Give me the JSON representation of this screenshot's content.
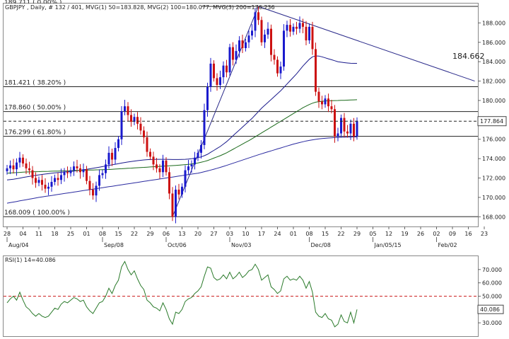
{
  "header": {
    "text": "GBPJPY , Daily, # 132 / 401, MVG(1) 50=183.828, MVG(2) 100=180.077, MVG(3) 200=176.236"
  },
  "price_tag": "177.864",
  "trendline_value": "184.662",
  "colors": {
    "bull": "#1a1acd",
    "bear": "#cc1111",
    "ma50": "#1a1a8c",
    "ma100": "#1b6a1b",
    "ma200": "#2a2aa0",
    "fib": "#222222",
    "rsi_line": "#2a7a2a",
    "rsi_ref": "#cc2222",
    "trend": "#2a2a8a"
  },
  "chart_data": [
    {
      "type": "candlestick",
      "title": "GBPJPY , Daily",
      "ylim": [
        167.0,
        190.0
      ],
      "y_ticks": [
        168,
        170,
        172,
        174,
        176,
        178,
        180,
        182,
        184,
        186,
        188
      ],
      "y_tick_labels": [
        "168.000",
        "170.000",
        "172.000",
        "174.000",
        "176.000",
        "178.000",
        "180.000",
        "182.000",
        "184.000",
        "186.000",
        "188.000"
      ],
      "x_tick_labels": [
        "28",
        "04",
        "11",
        "18",
        "25",
        "01",
        "08",
        "15",
        "22",
        "29",
        "06",
        "13",
        "20",
        "27",
        "03",
        "10",
        "17",
        "24",
        "01",
        "08",
        "15",
        "22",
        "29",
        "05",
        "12",
        "19",
        "26",
        "02",
        "09",
        "16",
        "23"
      ],
      "month_labels": [
        {
          "label": "Aug/04",
          "at_tick": 0
        },
        {
          "label": "Sep/08",
          "at_tick": 6
        },
        {
          "label": "Oct/06",
          "at_tick": 10
        },
        {
          "label": "Nov/03",
          "at_tick": 14
        },
        {
          "label": "Dec/08",
          "at_tick": 19
        },
        {
          "label": "Jan/05/15",
          "at_tick": 23
        },
        {
          "label": "Feb/02",
          "at_tick": 27
        }
      ],
      "candles_per_week": 5,
      "first_tick_candle_offset": 0,
      "current_price": 177.864,
      "fib_levels": [
        {
          "label": "168.009  ( 100.00% )",
          "value": 168.009
        },
        {
          "label": "176.299  ( 61.80% )",
          "value": 176.299
        },
        {
          "label": "178.860  ( 50.00% )",
          "value": 178.86
        },
        {
          "label": "181.421  ( 38.20% )",
          "value": 181.421
        },
        {
          "label": "189.711  ( 0.00% )",
          "value": 189.711
        }
      ],
      "close": [
        173.0,
        173.3,
        172.9,
        173.6,
        174.1,
        173.5,
        173.0,
        172.8,
        172.0,
        171.5,
        171.8,
        171.3,
        170.9,
        171.1,
        171.6,
        172.0,
        171.8,
        172.3,
        172.6,
        172.5,
        172.8,
        173.2,
        173.0,
        172.6,
        172.9,
        171.7,
        170.8,
        170.2,
        171.2,
        172.3,
        172.5,
        173.4,
        174.6,
        173.9,
        175.1,
        176.0,
        178.9,
        179.4,
        178.5,
        177.8,
        178.3,
        177.6,
        176.9,
        176.2,
        174.7,
        174.2,
        173.4,
        173.0,
        172.6,
        173.8,
        172.6,
        170.4,
        168.0,
        170.8,
        170.3,
        171.1,
        172.8,
        173.2,
        173.4,
        174.1,
        174.6,
        175.4,
        179.0,
        181.4,
        183.8,
        182.3,
        181.6,
        182.4,
        183.6,
        182.9,
        185.5,
        184.2,
        185.1,
        186.2,
        185.4,
        186.0,
        186.7,
        187.2,
        189.1,
        188.3,
        186.0,
        186.8,
        187.4,
        184.7,
        184.2,
        182.8,
        183.5,
        187.2,
        187.8,
        187.1,
        187.6,
        187.4,
        188.0,
        187.6,
        186.2,
        187.6,
        185.3,
        180.9,
        179.9,
        179.6,
        180.2,
        179.4,
        179.1,
        176.3,
        176.6,
        178.2,
        176.8,
        176.6,
        177.6,
        176.3,
        177.9
      ],
      "ma50": [
        171.8,
        171.84,
        171.88,
        171.93,
        171.99,
        172.05,
        172.11,
        172.17,
        172.22,
        172.27,
        172.32,
        172.37,
        172.41,
        172.45,
        172.49,
        172.53,
        172.56,
        172.59,
        172.62,
        172.65,
        172.68,
        172.72,
        172.76,
        172.8,
        172.85,
        172.9,
        172.95,
        173.0,
        173.06,
        173.12,
        173.18,
        173.24,
        173.3,
        173.36,
        173.42,
        173.48,
        173.54,
        173.6,
        173.65,
        173.7,
        173.75,
        173.79,
        173.83,
        173.86,
        173.89,
        173.91,
        173.92,
        173.93,
        173.93,
        173.93,
        173.93,
        173.92,
        173.91,
        173.91,
        173.91,
        173.92,
        173.93,
        173.95,
        173.99,
        174.04,
        174.1,
        174.18,
        174.3,
        174.45,
        174.65,
        174.85,
        175.05,
        175.25,
        175.5,
        175.75,
        176.05,
        176.35,
        176.65,
        176.95,
        177.25,
        177.55,
        177.85,
        178.15,
        178.5,
        178.85,
        179.2,
        179.5,
        179.8,
        180.1,
        180.4,
        180.7,
        181.0,
        181.35,
        181.7,
        182.05,
        182.4,
        182.75,
        183.15,
        183.55,
        183.9,
        184.25,
        184.5,
        184.6,
        184.58,
        184.5,
        184.4,
        184.3,
        184.2,
        184.1,
        184.0,
        183.95,
        183.9,
        183.87,
        183.84,
        183.83,
        183.83
      ],
      "ma100": [
        172.5,
        172.52,
        172.54,
        172.56,
        172.58,
        172.6,
        172.62,
        172.63,
        172.64,
        172.65,
        172.66,
        172.67,
        172.68,
        172.69,
        172.7,
        172.71,
        172.72,
        172.73,
        172.74,
        172.75,
        172.76,
        172.77,
        172.78,
        172.79,
        172.8,
        172.81,
        172.82,
        172.83,
        172.84,
        172.85,
        172.86,
        172.87,
        172.88,
        172.9,
        172.92,
        172.94,
        172.96,
        172.98,
        173.0,
        173.02,
        173.04,
        173.06,
        173.08,
        173.1,
        173.12,
        173.14,
        173.16,
        173.18,
        173.2,
        173.22,
        173.24,
        173.26,
        173.28,
        173.3,
        173.32,
        173.35,
        173.38,
        173.41,
        173.45,
        173.5,
        173.55,
        173.62,
        173.7,
        173.8,
        173.92,
        174.05,
        174.18,
        174.3,
        174.45,
        174.6,
        174.78,
        174.96,
        175.14,
        175.32,
        175.5,
        175.68,
        175.86,
        176.05,
        176.25,
        176.45,
        176.65,
        176.85,
        177.05,
        177.25,
        177.45,
        177.65,
        177.85,
        178.05,
        178.25,
        178.45,
        178.65,
        178.85,
        179.05,
        179.25,
        179.42,
        179.58,
        179.72,
        179.82,
        179.88,
        179.92,
        179.95,
        179.97,
        179.98,
        179.99,
        180.0,
        180.01,
        180.02,
        180.03,
        180.05,
        180.06,
        180.08
      ],
      "ma200": [
        169.4,
        169.46,
        169.52,
        169.58,
        169.64,
        169.7,
        169.76,
        169.82,
        169.88,
        169.94,
        170.0,
        170.05,
        170.1,
        170.15,
        170.2,
        170.25,
        170.3,
        170.35,
        170.4,
        170.45,
        170.5,
        170.55,
        170.6,
        170.65,
        170.7,
        170.75,
        170.8,
        170.85,
        170.9,
        170.95,
        171.0,
        171.05,
        171.1,
        171.15,
        171.2,
        171.25,
        171.3,
        171.35,
        171.4,
        171.45,
        171.5,
        171.55,
        171.6,
        171.65,
        171.7,
        171.75,
        171.8,
        171.85,
        171.9,
        171.95,
        172.0,
        172.05,
        172.1,
        172.15,
        172.2,
        172.25,
        172.3,
        172.35,
        172.4,
        172.45,
        172.5,
        172.57,
        172.65,
        172.73,
        172.82,
        172.91,
        173.0,
        173.1,
        173.2,
        173.3,
        173.41,
        173.52,
        173.63,
        173.74,
        173.85,
        173.96,
        174.07,
        174.18,
        174.29,
        174.4,
        174.5,
        174.6,
        174.7,
        174.8,
        174.9,
        175.0,
        175.1,
        175.2,
        175.3,
        175.4,
        175.5,
        175.58,
        175.66,
        175.74,
        175.82,
        175.88,
        175.94,
        175.99,
        176.03,
        176.07,
        176.1,
        176.13,
        176.15,
        176.17,
        176.19,
        176.2,
        176.21,
        176.22,
        176.23,
        176.235,
        176.236
      ],
      "trendlines": [
        {
          "from": {
            "i": 52,
            "price": 168.0
          },
          "to": {
            "i": 79,
            "price": 189.7
          }
        },
        {
          "from": {
            "i": 79,
            "price": 189.7
          },
          "to": {
            "i": 147,
            "price": 182.0
          }
        }
      ]
    },
    {
      "type": "line",
      "title": "RSI(1) 14=40.086",
      "ylim": [
        20,
        80
      ],
      "y_ticks": [
        30,
        40,
        50,
        60,
        70
      ],
      "y_tick_labels": [
        "30.000",
        "40.000",
        "50.000",
        "60.000",
        "70.000"
      ],
      "reference_line": 50,
      "current_value": "40.086",
      "values": [
        45,
        48,
        50,
        47,
        53,
        47,
        42,
        40,
        37,
        35,
        37,
        35,
        34,
        35,
        38,
        41,
        40,
        44,
        46,
        45,
        47,
        49,
        48,
        46,
        47,
        42,
        39,
        37,
        41,
        45,
        46,
        50,
        56,
        52,
        58,
        62,
        72,
        76,
        70,
        66,
        69,
        63,
        58,
        55,
        47,
        45,
        42,
        41,
        39,
        45,
        40,
        33,
        29,
        38,
        37,
        40,
        46,
        48,
        49,
        52,
        54,
        57,
        65,
        72,
        71,
        64,
        62,
        63,
        66,
        63,
        68,
        63,
        65,
        68,
        64,
        66,
        69,
        70,
        74,
        70,
        62,
        64,
        66,
        57,
        55,
        52,
        54,
        63,
        65,
        62,
        63,
        62,
        65,
        62,
        56,
        61,
        53,
        38,
        35,
        34,
        37,
        33,
        32,
        27,
        29,
        36,
        31,
        30,
        38,
        30,
        40
      ]
    }
  ]
}
